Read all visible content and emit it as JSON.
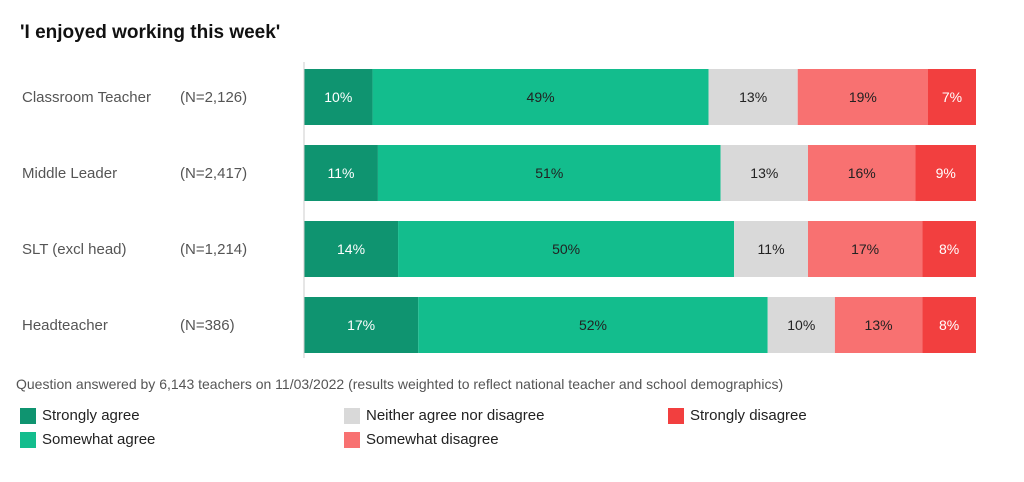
{
  "chart_data": {
    "type": "bar",
    "orientation": "horizontal",
    "stacked": true,
    "title": "'I enjoyed working this week'",
    "categories": [
      "Classroom Teacher",
      "Middle Leader",
      "SLT (excl head)",
      "Headteacher"
    ],
    "sample_sizes": [
      "(N=2,126)",
      "(N=2,417)",
      "(N=1,214)",
      "(N=386)"
    ],
    "series": [
      {
        "name": "Strongly agree",
        "color": "#0f9470",
        "values": [
          10,
          11,
          14,
          17
        ],
        "labels": [
          "10%",
          "11%",
          "14%",
          "17%"
        ]
      },
      {
        "name": "Somewhat agree",
        "color": "#13bd8d",
        "values": [
          49,
          51,
          50,
          52
        ],
        "labels": [
          "49%",
          "51%",
          "50%",
          "52%"
        ]
      },
      {
        "name": "Neither agree nor disagree",
        "color": "#d9d9d9",
        "values": [
          13,
          13,
          11,
          10
        ],
        "labels": [
          "13%",
          "13%",
          "11%",
          "10%"
        ]
      },
      {
        "name": "Somewhat disagree",
        "color": "#f87171",
        "values": [
          19,
          16,
          17,
          13
        ],
        "labels": [
          "19%",
          "16%",
          "17%",
          "13%"
        ]
      },
      {
        "name": "Strongly disagree",
        "color": "#f23f3f",
        "values": [
          7,
          9,
          8,
          8
        ],
        "labels": [
          "7%",
          "9%",
          "8%",
          "8%"
        ]
      }
    ],
    "legend_placement": "bottom",
    "grid": false
  },
  "note": "Question answered by 6,143 teachers on 11/03/2022 (results weighted to reflect national teacher and school demographics)",
  "legend": [
    {
      "name": "Strongly agree",
      "color": "#0f9470"
    },
    {
      "name": "Somewhat agree",
      "color": "#13bd8d"
    },
    {
      "name": "Neither agree nor disagree",
      "color": "#d9d9d9"
    },
    {
      "name": "Somewhat disagree",
      "color": "#f87171"
    },
    {
      "name": "Strongly disagree",
      "color": "#f23f3f"
    }
  ]
}
